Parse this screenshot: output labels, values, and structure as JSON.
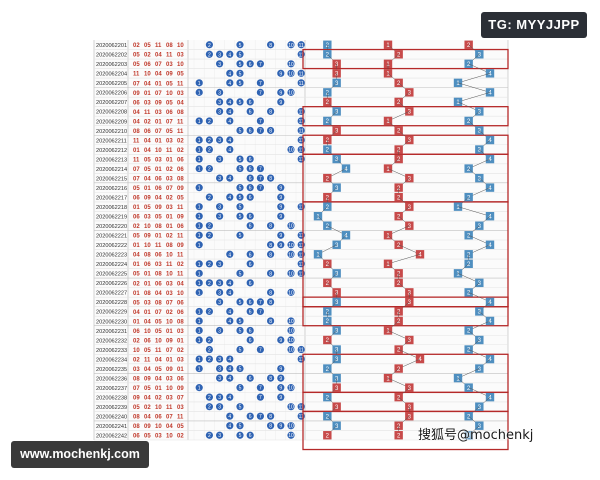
{
  "badge": {
    "text": "TG: MYYJJPP"
  },
  "footer": {
    "site": "www.mochenkj.com"
  },
  "watermark": {
    "text": "搜狐号@mochenkj"
  },
  "colors": {
    "ball": "#2f63b3",
    "num_red": "#c0392b",
    "box_red": "#c74a4a",
    "box_blue": "#4f8fc0",
    "line_red": "#b52a2a"
  },
  "rows": [
    {
      "issue": "2020062201",
      "nums": [
        "02",
        "05",
        "11",
        "08",
        "10"
      ]
    },
    {
      "issue": "2020062202",
      "nums": [
        "05",
        "02",
        "04",
        "11",
        "03"
      ]
    },
    {
      "issue": "2020062203",
      "nums": [
        "05",
        "06",
        "07",
        "03",
        "10"
      ]
    },
    {
      "issue": "2020062204",
      "nums": [
        "11",
        "10",
        "04",
        "09",
        "05"
      ]
    },
    {
      "issue": "2020062205",
      "nums": [
        "07",
        "04",
        "01",
        "05",
        "11"
      ]
    },
    {
      "issue": "2020062206",
      "nums": [
        "09",
        "01",
        "07",
        "10",
        "03"
      ]
    },
    {
      "issue": "2020062207",
      "nums": [
        "06",
        "03",
        "09",
        "05",
        "04"
      ]
    },
    {
      "issue": "2020062208",
      "nums": [
        "04",
        "11",
        "03",
        "06",
        "08"
      ]
    },
    {
      "issue": "2020062209",
      "nums": [
        "04",
        "02",
        "01",
        "07",
        "11"
      ]
    },
    {
      "issue": "2020062210",
      "nums": [
        "08",
        "06",
        "07",
        "05",
        "11"
      ]
    },
    {
      "issue": "2020062211",
      "nums": [
        "11",
        "04",
        "01",
        "03",
        "02"
      ]
    },
    {
      "issue": "2020062212",
      "nums": [
        "01",
        "04",
        "10",
        "11",
        "02"
      ]
    },
    {
      "issue": "2020062213",
      "nums": [
        "11",
        "05",
        "03",
        "01",
        "06"
      ]
    },
    {
      "issue": "2020062214",
      "nums": [
        "07",
        "05",
        "01",
        "02",
        "06"
      ]
    },
    {
      "issue": "2020062215",
      "nums": [
        "07",
        "04",
        "06",
        "03",
        "08"
      ]
    },
    {
      "issue": "2020062216",
      "nums": [
        "05",
        "01",
        "06",
        "07",
        "09"
      ]
    },
    {
      "issue": "2020062217",
      "nums": [
        "06",
        "09",
        "04",
        "02",
        "05"
      ]
    },
    {
      "issue": "2020062218",
      "nums": [
        "01",
        "05",
        "09",
        "03",
        "11"
      ]
    },
    {
      "issue": "2020062219",
      "nums": [
        "06",
        "03",
        "05",
        "01",
        "09"
      ]
    },
    {
      "issue": "2020062220",
      "nums": [
        "02",
        "10",
        "08",
        "01",
        "06"
      ]
    },
    {
      "issue": "2020062221",
      "nums": [
        "05",
        "09",
        "01",
        "02",
        "11"
      ]
    },
    {
      "issue": "2020062222",
      "nums": [
        "01",
        "10",
        "11",
        "08",
        "09"
      ]
    },
    {
      "issue": "2020062223",
      "nums": [
        "04",
        "08",
        "06",
        "10",
        "11"
      ]
    },
    {
      "issue": "2020062224",
      "nums": [
        "01",
        "06",
        "03",
        "11",
        "02"
      ]
    },
    {
      "issue": "2020062225",
      "nums": [
        "05",
        "01",
        "08",
        "10",
        "11"
      ]
    },
    {
      "issue": "2020062226",
      "nums": [
        "02",
        "01",
        "06",
        "03",
        "04"
      ]
    },
    {
      "issue": "2020062227",
      "nums": [
        "01",
        "08",
        "04",
        "03",
        "10"
      ]
    },
    {
      "issue": "2020062228",
      "nums": [
        "05",
        "03",
        "08",
        "07",
        "06"
      ]
    },
    {
      "issue": "2020062229",
      "nums": [
        "04",
        "01",
        "07",
        "02",
        "06"
      ]
    },
    {
      "issue": "2020062230",
      "nums": [
        "01",
        "04",
        "05",
        "10",
        "08"
      ]
    },
    {
      "issue": "2020062231",
      "nums": [
        "06",
        "10",
        "05",
        "01",
        "03"
      ]
    },
    {
      "issue": "2020062232",
      "nums": [
        "02",
        "06",
        "10",
        "09",
        "01"
      ]
    },
    {
      "issue": "2020062233",
      "nums": [
        "10",
        "05",
        "11",
        "07",
        "02"
      ]
    },
    {
      "issue": "2020062234",
      "nums": [
        "02",
        "11",
        "04",
        "01",
        "03"
      ]
    },
    {
      "issue": "2020062235",
      "nums": [
        "03",
        "04",
        "05",
        "09",
        "01"
      ]
    },
    {
      "issue": "2020062236",
      "nums": [
        "08",
        "09",
        "04",
        "03",
        "06"
      ]
    },
    {
      "issue": "2020062237",
      "nums": [
        "07",
        "05",
        "01",
        "10",
        "09"
      ]
    },
    {
      "issue": "2020062238",
      "nums": [
        "09",
        "04",
        "02",
        "03",
        "07"
      ]
    },
    {
      "issue": "2020062239",
      "nums": [
        "05",
        "02",
        "10",
        "11",
        "03"
      ]
    },
    {
      "issue": "2020062240",
      "nums": [
        "08",
        "04",
        "06",
        "07",
        "11"
      ]
    },
    {
      "issue": "2020062241",
      "nums": [
        "08",
        "09",
        "10",
        "04",
        "05"
      ]
    },
    {
      "issue": "2020062242",
      "nums": [
        "06",
        "05",
        "03",
        "10",
        "02"
      ]
    }
  ],
  "trend": [
    {
      "c": [
        {
          "v": "2",
          "red": false
        },
        {
          "v": "1",
          "red": true
        },
        {
          "v": "2",
          "red": true
        }
      ]
    },
    {
      "c": [
        {
          "v": "2",
          "red": false
        },
        {
          "v": "2",
          "red": true
        },
        {
          "v": "3",
          "red": false
        }
      ]
    },
    {
      "c": [
        {
          "v": "3",
          "red": true
        },
        {
          "v": "1",
          "red": true
        },
        {
          "v": "2",
          "red": false
        }
      ]
    },
    {
      "c": [
        {
          "v": "3",
          "red": true
        },
        {
          "v": "1",
          "red": true
        },
        {
          "v": "4",
          "red": false
        }
      ]
    },
    {
      "c": [
        {
          "v": "3",
          "red": false
        },
        {
          "v": "2",
          "red": true
        },
        {
          "v": "1",
          "red": false
        }
      ]
    },
    {
      "c": [
        {
          "v": "2",
          "red": false
        },
        {
          "v": "3",
          "red": true
        },
        {
          "v": "4",
          "red": false
        }
      ]
    },
    {
      "c": [
        {
          "v": "2",
          "red": true
        },
        {
          "v": "2",
          "red": true
        },
        {
          "v": "1",
          "red": false
        }
      ]
    },
    {
      "c": [
        {
          "v": "3",
          "red": false
        },
        {
          "v": "3",
          "red": true
        },
        {
          "v": "3",
          "red": false
        }
      ]
    },
    {
      "c": [
        {
          "v": "2",
          "red": false
        },
        {
          "v": "1",
          "red": true
        },
        {
          "v": "2",
          "red": false
        }
      ]
    },
    {
      "c": [
        {
          "v": "3",
          "red": true
        },
        {
          "v": "2",
          "red": true
        },
        {
          "v": "3",
          "red": false
        }
      ]
    },
    {
      "c": [
        {
          "v": "2",
          "red": true
        },
        {
          "v": "3",
          "red": true
        },
        {
          "v": "4",
          "red": false
        }
      ]
    },
    {
      "c": [
        {
          "v": "2",
          "red": false
        },
        {
          "v": "2",
          "red": true
        },
        {
          "v": "3",
          "red": false
        }
      ]
    },
    {
      "c": [
        {
          "v": "3",
          "red": false
        },
        {
          "v": "2",
          "red": true
        },
        {
          "v": "4",
          "red": false
        }
      ]
    },
    {
      "c": [
        {
          "v": "4",
          "red": false
        },
        {
          "v": "1",
          "red": true
        },
        {
          "v": "2",
          "red": false
        }
      ]
    },
    {
      "c": [
        {
          "v": "2",
          "red": true
        },
        {
          "v": "3",
          "red": true
        },
        {
          "v": "3",
          "red": false
        }
      ]
    },
    {
      "c": [
        {
          "v": "3",
          "red": false
        },
        {
          "v": "2",
          "red": true
        },
        {
          "v": "4",
          "red": false
        }
      ]
    },
    {
      "c": [
        {
          "v": "2",
          "red": true
        },
        {
          "v": "2",
          "red": true
        },
        {
          "v": "2",
          "red": false
        }
      ]
    },
    {
      "c": [
        {
          "v": "2",
          "red": false
        },
        {
          "v": "3",
          "red": true
        },
        {
          "v": "1",
          "red": false
        }
      ]
    },
    {
      "c": [
        {
          "v": "1",
          "red": false
        },
        {
          "v": "2",
          "red": true
        },
        {
          "v": "4",
          "red": false
        }
      ]
    },
    {
      "c": [
        {
          "v": "2",
          "red": false
        },
        {
          "v": "3",
          "red": true
        },
        {
          "v": "3",
          "red": false
        }
      ]
    },
    {
      "c": [
        {
          "v": "4",
          "red": false
        },
        {
          "v": "1",
          "red": true
        },
        {
          "v": "2",
          "red": false
        }
      ]
    },
    {
      "c": [
        {
          "v": "3",
          "red": false
        },
        {
          "v": "2",
          "red": true
        },
        {
          "v": "4",
          "red": false
        }
      ]
    },
    {
      "c": [
        {
          "v": "1",
          "red": false
        },
        {
          "v": "4",
          "red": true
        },
        {
          "v": "2",
          "red": false
        }
      ]
    },
    {
      "c": [
        {
          "v": "2",
          "red": true
        },
        {
          "v": "1",
          "red": true
        },
        {
          "v": "2",
          "red": false
        }
      ]
    },
    {
      "c": [
        {
          "v": "3",
          "red": false
        },
        {
          "v": "2",
          "red": true
        },
        {
          "v": "1",
          "red": false
        }
      ]
    },
    {
      "c": [
        {
          "v": "2",
          "red": true
        },
        {
          "v": "2",
          "red": true
        },
        {
          "v": "3",
          "red": false
        }
      ]
    },
    {
      "c": [
        {
          "v": "3",
          "red": true
        },
        {
          "v": "3",
          "red": true
        },
        {
          "v": "2",
          "red": false
        }
      ]
    },
    {
      "c": [
        {
          "v": "3",
          "red": false
        },
        {
          "v": "3",
          "red": true
        },
        {
          "v": "4",
          "red": false
        }
      ]
    },
    {
      "c": [
        {
          "v": "2",
          "red": false
        },
        {
          "v": "2",
          "red": true
        },
        {
          "v": "3",
          "red": false
        }
      ]
    },
    {
      "c": [
        {
          "v": "2",
          "red": false
        },
        {
          "v": "2",
          "red": true
        },
        {
          "v": "4",
          "red": false
        }
      ]
    },
    {
      "c": [
        {
          "v": "3",
          "red": false
        },
        {
          "v": "1",
          "red": true
        },
        {
          "v": "2",
          "red": false
        }
      ]
    },
    {
      "c": [
        {
          "v": "2",
          "red": true
        },
        {
          "v": "3",
          "red": true
        },
        {
          "v": "3",
          "red": false
        }
      ]
    },
    {
      "c": [
        {
          "v": "3",
          "red": false
        },
        {
          "v": "2",
          "red": true
        },
        {
          "v": "2",
          "red": false
        }
      ]
    },
    {
      "c": [
        {
          "v": "3",
          "red": false
        },
        {
          "v": "4",
          "red": true
        },
        {
          "v": "4",
          "red": false
        }
      ]
    },
    {
      "c": [
        {
          "v": "2",
          "red": false
        },
        {
          "v": "2",
          "red": true
        },
        {
          "v": "3",
          "red": false
        }
      ]
    },
    {
      "c": [
        {
          "v": "3",
          "red": false
        },
        {
          "v": "1",
          "red": true
        },
        {
          "v": "1",
          "red": false
        }
      ]
    },
    {
      "c": [
        {
          "v": "3",
          "red": true
        },
        {
          "v": "3",
          "red": true
        },
        {
          "v": "2",
          "red": false
        }
      ]
    },
    {
      "c": [
        {
          "v": "2",
          "red": false
        },
        {
          "v": "2",
          "red": true
        },
        {
          "v": "4",
          "red": false
        }
      ]
    },
    {
      "c": [
        {
          "v": "3",
          "red": true
        },
        {
          "v": "3",
          "red": true
        },
        {
          "v": "3",
          "red": false
        }
      ]
    },
    {
      "c": [
        {
          "v": "2",
          "red": false
        },
        {
          "v": "3",
          "red": true
        },
        {
          "v": "2",
          "red": false
        }
      ]
    },
    {
      "c": [
        {
          "v": "3",
          "red": false
        },
        {
          "v": "2",
          "red": true
        },
        {
          "v": "3",
          "red": false
        }
      ]
    },
    {
      "c": [
        {
          "v": "2",
          "red": true
        },
        {
          "v": "2",
          "red": true
        },
        {
          "v": "2",
          "red": false
        }
      ]
    }
  ],
  "highlight_groups": [
    [
      1,
      2
    ],
    [
      7,
      8
    ],
    [
      10,
      11
    ],
    [
      12,
      16
    ],
    [
      17,
      27
    ],
    [
      27,
      27
    ],
    [
      28,
      29
    ],
    [
      33,
      36
    ],
    [
      37,
      38
    ],
    [
      39,
      42
    ]
  ]
}
